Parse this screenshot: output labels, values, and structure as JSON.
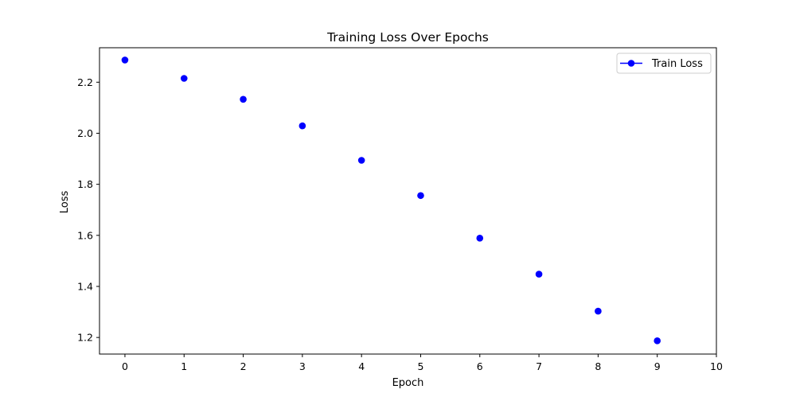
{
  "chart_data": {
    "type": "scatter",
    "title": "Training Loss Over Epochs",
    "xlabel": "Epoch",
    "ylabel": "Loss",
    "xlim": [
      -0.43,
      10
    ],
    "ylim": [
      1.135,
      2.335
    ],
    "xticks": [
      0,
      1,
      2,
      3,
      4,
      5,
      6,
      7,
      8,
      9,
      10
    ],
    "yticks": [
      1.2,
      1.4,
      1.6,
      1.8,
      2.0,
      2.2
    ],
    "ytick_labels": [
      "1.2",
      "1.4",
      "1.6",
      "1.8",
      "2.0",
      "2.2"
    ],
    "grid": false,
    "legend_position": "top-right",
    "series": [
      {
        "name": "Train Loss",
        "color": "#0000ff",
        "marker": "circle",
        "x": [
          0,
          1,
          2,
          3,
          4,
          5,
          6,
          7,
          8,
          9
        ],
        "y": [
          2.287,
          2.215,
          2.133,
          2.029,
          1.894,
          1.756,
          1.589,
          1.448,
          1.303,
          1.187
        ]
      }
    ]
  }
}
